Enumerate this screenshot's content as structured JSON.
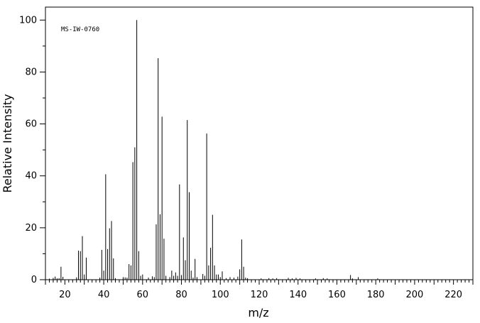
{
  "chart_data": {
    "type": "bar",
    "title": "",
    "annotation": "MS-IW-0760",
    "xlabel": "m/z",
    "ylabel": "Relative Intensity",
    "xlim": [
      10,
      230
    ],
    "ylim": [
      0,
      105
    ],
    "x_ticks": [
      20,
      40,
      60,
      80,
      100,
      120,
      140,
      160,
      180,
      200,
      220
    ],
    "y_ticks": [
      0,
      20,
      40,
      60,
      80,
      100
    ],
    "grid": false,
    "legend": "none",
    "peaks": [
      [
        12,
        0.4
      ],
      [
        14,
        0.7
      ],
      [
        15,
        1.2
      ],
      [
        16,
        0.5
      ],
      [
        17,
        0.6
      ],
      [
        18,
        5.0
      ],
      [
        19,
        1.1
      ],
      [
        26,
        0.9
      ],
      [
        27,
        11.2
      ],
      [
        28,
        11.0
      ],
      [
        29,
        16.8
      ],
      [
        30,
        2.0
      ],
      [
        31,
        8.5
      ],
      [
        38,
        0.8
      ],
      [
        39,
        11.5
      ],
      [
        40,
        3.5
      ],
      [
        41,
        40.6
      ],
      [
        42,
        11.8
      ],
      [
        43,
        19.8
      ],
      [
        44,
        22.6
      ],
      [
        45,
        8.2
      ],
      [
        46,
        0.6
      ],
      [
        50,
        1.0
      ],
      [
        51,
        0.9
      ],
      [
        52,
        0.8
      ],
      [
        53,
        6.0
      ],
      [
        54,
        5.5
      ],
      [
        55,
        45.3
      ],
      [
        56,
        51.0
      ],
      [
        57,
        100.0
      ],
      [
        58,
        11.0
      ],
      [
        59,
        1.5
      ],
      [
        60,
        2.0
      ],
      [
        63,
        0.8
      ],
      [
        65,
        1.3
      ],
      [
        66,
        1.0
      ],
      [
        67,
        21.3
      ],
      [
        68,
        85.3
      ],
      [
        69,
        25.2
      ],
      [
        70,
        62.8
      ],
      [
        71,
        15.8
      ],
      [
        72,
        1.5
      ],
      [
        74,
        1.0
      ],
      [
        75,
        3.5
      ],
      [
        76,
        1.5
      ],
      [
        77,
        2.8
      ],
      [
        78,
        1.5
      ],
      [
        79,
        36.7
      ],
      [
        80,
        1.8
      ],
      [
        81,
        16.3
      ],
      [
        82,
        7.5
      ],
      [
        83,
        61.5
      ],
      [
        84,
        33.7
      ],
      [
        85,
        3.5
      ],
      [
        86,
        0.8
      ],
      [
        87,
        8.0
      ],
      [
        88,
        1.0
      ],
      [
        91,
        2.2
      ],
      [
        92,
        1.5
      ],
      [
        93,
        56.3
      ],
      [
        94,
        5.5
      ],
      [
        95,
        12.3
      ],
      [
        96,
        25.0
      ],
      [
        97,
        5.5
      ],
      [
        98,
        2.0
      ],
      [
        99,
        2.0
      ],
      [
        100,
        1.0
      ],
      [
        101,
        3.2
      ],
      [
        103,
        0.6
      ],
      [
        105,
        1.0
      ],
      [
        107,
        0.8
      ],
      [
        109,
        1.2
      ],
      [
        110,
        4.0
      ],
      [
        111,
        15.5
      ],
      [
        112,
        5.0
      ],
      [
        113,
        0.8
      ],
      [
        114,
        0.6
      ],
      [
        121,
        0.5
      ],
      [
        125,
        0.6
      ],
      [
        127,
        0.5
      ],
      [
        129,
        0.6
      ],
      [
        135,
        0.7
      ],
      [
        137,
        0.5
      ],
      [
        139,
        0.7
      ],
      [
        141,
        0.5
      ],
      [
        149,
        0.5
      ],
      [
        153,
        0.6
      ],
      [
        155,
        0.5
      ],
      [
        167,
        1.8
      ],
      [
        168,
        0.5
      ],
      [
        171,
        1.0
      ],
      [
        181,
        0.5
      ]
    ]
  }
}
